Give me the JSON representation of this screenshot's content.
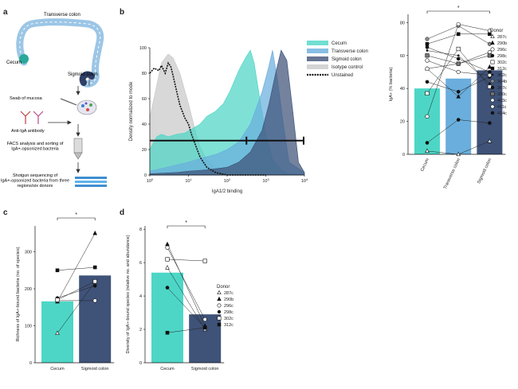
{
  "panels": {
    "a": {
      "letter": "a",
      "steps": [
        "Transverse colon",
        "Cecum",
        "Sigmoid colon",
        "Swab of mucosa",
        "Anti-IgA antibody",
        "FACS analysis and sorting of IgA+-opsonized bacteria",
        "Shotgun sequencing of IgA+-opsonized bacteria from three regions/six donors"
      ]
    },
    "b": {
      "letter": "b"
    },
    "c": {
      "letter": "c"
    },
    "d": {
      "letter": "d"
    }
  },
  "colors": {
    "cecum": "#4dd6c6",
    "transverse": "#6aaedd",
    "sigmoid": "#3f5278",
    "isotype": "#c9c9c9"
  },
  "chart_data": [
    {
      "id": "b-histogram",
      "type": "area",
      "xlabel": "IgA1/2 binding",
      "ylabel": "Density normalized to mode",
      "xscale": "log",
      "xlim": [
        1,
        10000
      ],
      "xticks": [
        "10^0",
        "10^1",
        "10^2",
        "10^3",
        "10^4"
      ],
      "yticks": [
        "0",
        "20",
        "40",
        "60",
        "80",
        "100"
      ],
      "ylim": [
        0,
        100
      ],
      "gate_y": 27,
      "legend": [
        "Cecum",
        "Transverse colon",
        "Sigmoid colon",
        "Isotype control",
        "Unstained"
      ],
      "series": [
        {
          "name": "Cecum",
          "color": "#4dd6c6",
          "x": [
            1,
            1.5,
            2,
            3,
            5,
            8,
            12,
            20,
            30,
            50,
            80,
            120,
            200,
            300,
            400,
            500,
            700,
            1000,
            1500,
            2500,
            4000,
            10000
          ],
          "y": [
            20,
            30,
            32,
            30,
            32,
            33,
            36,
            40,
            46,
            50,
            56,
            66,
            82,
            92,
            98,
            88,
            60,
            32,
            12,
            4,
            1,
            0
          ]
        },
        {
          "name": "Transverse colon",
          "color": "#6aaedd",
          "x": [
            1,
            2,
            5,
            10,
            20,
            50,
            100,
            200,
            400,
            800,
            1200,
            1500,
            2000,
            3000,
            4000,
            10000
          ],
          "y": [
            3,
            5,
            8,
            10,
            13,
            16,
            20,
            26,
            40,
            65,
            85,
            98,
            75,
            35,
            10,
            2
          ]
        },
        {
          "name": "Sigmoid colon",
          "color": "#3f5278",
          "x": [
            1,
            5,
            10,
            30,
            100,
            200,
            400,
            800,
            1200,
            1800,
            2500,
            3500,
            5000,
            7000,
            10000
          ],
          "y": [
            1,
            2,
            3,
            4,
            6,
            10,
            18,
            35,
            55,
            80,
            98,
            90,
            50,
            10,
            2
          ]
        },
        {
          "name": "Isotype control",
          "color": "#c9c9c9",
          "x": [
            1,
            1.5,
            2,
            3,
            4,
            6,
            10,
            15,
            20,
            30,
            50,
            100,
            300,
            1000,
            10000
          ],
          "y": [
            45,
            70,
            88,
            95,
            92,
            80,
            56,
            35,
            22,
            12,
            6,
            3,
            1,
            0,
            0
          ]
        },
        {
          "name": "Unstained",
          "color": "#111111",
          "x": [
            1,
            1.3,
            1.7,
            2,
            2.5,
            3,
            3.5,
            4,
            5,
            6,
            8,
            10,
            12,
            15,
            20,
            30,
            50,
            100,
            300,
            1000
          ],
          "y": [
            80,
            84,
            82,
            86,
            80,
            88,
            85,
            78,
            65,
            55,
            45,
            40,
            32,
            24,
            14,
            6,
            2,
            0,
            0,
            0
          ]
        }
      ]
    },
    {
      "id": "b-bars",
      "type": "bar",
      "categories": [
        "Cecum",
        "Transverse colon",
        "Sigmoid colon"
      ],
      "values": [
        40,
        46,
        51
      ],
      "ylabel": "IgA+ (% bacteria)",
      "ylim": [
        0,
        85
      ],
      "yticks": [
        0,
        20,
        40,
        60,
        80
      ],
      "significance": "*",
      "legend_title": "Donor",
      "donors": [
        {
          "name": "287c",
          "marker": "tri-open",
          "values": [
            2,
            0,
            8
          ]
        },
        {
          "name": "290b",
          "marker": "tri-filled",
          "values": [
            52,
            35,
            53
          ]
        },
        {
          "name": "296c",
          "marker": "circle-open",
          "values": [
            52,
            55,
            62
          ]
        },
        {
          "name": "298c",
          "marker": "circle-filled",
          "values": [
            65,
            58,
            50
          ]
        },
        {
          "name": "302c",
          "marker": "square-open",
          "values": [
            37,
            64,
            41
          ]
        },
        {
          "name": "312c",
          "marker": "square-filled",
          "values": [
            67,
            73,
            73
          ]
        },
        {
          "name": "362c",
          "marker": "dot-small",
          "values": [
            63,
            60,
            43
          ]
        },
        {
          "name": "364b",
          "marker": "dot-gray",
          "values": [
            70,
            78,
            67
          ]
        },
        {
          "name": "367c",
          "marker": "circle-filled",
          "values": [
            44,
            38,
            47
          ]
        },
        {
          "name": "390c",
          "marker": "square-half",
          "values": [
            60,
            55,
            60
          ]
        },
        {
          "name": "403c",
          "marker": "circle-open",
          "values": [
            57,
            50,
            48
          ]
        },
        {
          "name": "411c",
          "marker": "circle-open",
          "values": [
            23,
            79,
            75
          ]
        },
        {
          "name": "414c",
          "marker": "circle-filled",
          "values": [
            7,
            21,
            19
          ]
        }
      ]
    },
    {
      "id": "c",
      "type": "bar",
      "categories": [
        "Cecum",
        "Sigmoid colon"
      ],
      "values": [
        166,
        236
      ],
      "ylabel": "Richness of IgA+-bound bacteria (no. of species)",
      "ylim": [
        0,
        370
      ],
      "yticks": [
        0,
        100,
        200,
        300
      ],
      "significance": "*",
      "donors": [
        {
          "name": "287c",
          "marker": "tri-open",
          "values": [
            80,
            218
          ]
        },
        {
          "name": "290b",
          "marker": "tri-filled",
          "values": [
            165,
            350
          ]
        },
        {
          "name": "296c",
          "marker": "circle-open",
          "values": [
            168,
            168
          ]
        },
        {
          "name": "298c",
          "marker": "circle-filled",
          "values": [
            175,
            208
          ]
        },
        {
          "name": "302c",
          "marker": "square-open",
          "values": [
            170,
            220
          ]
        },
        {
          "name": "312c",
          "marker": "square-filled",
          "values": [
            250,
            258
          ]
        }
      ]
    },
    {
      "id": "d",
      "type": "bar",
      "categories": [
        "Cecum",
        "Sigmoid colon"
      ],
      "values": [
        5.4,
        2.9
      ],
      "ylabel": "Diversity of IgA+-bound species (relative no. and abundance)",
      "ylim": [
        0,
        8.2
      ],
      "yticks": [
        0,
        2,
        4,
        6,
        8
      ],
      "significance": "*",
      "legend_title": "Donor",
      "donors": [
        {
          "name": "287c",
          "marker": "tri-open",
          "values": [
            5.7,
            2.0
          ]
        },
        {
          "name": "290b",
          "marker": "tri-filled",
          "values": [
            7.1,
            2.2
          ]
        },
        {
          "name": "296c",
          "marker": "circle-open",
          "values": [
            6.9,
            2.6
          ]
        },
        {
          "name": "298c",
          "marker": "circle-filled",
          "values": [
            4.5,
            2.1
          ]
        },
        {
          "name": "302c",
          "marker": "square-open",
          "values": [
            6.2,
            6.1
          ]
        },
        {
          "name": "312c",
          "marker": "square-filled",
          "values": [
            1.8,
            2.1
          ]
        }
      ]
    }
  ]
}
